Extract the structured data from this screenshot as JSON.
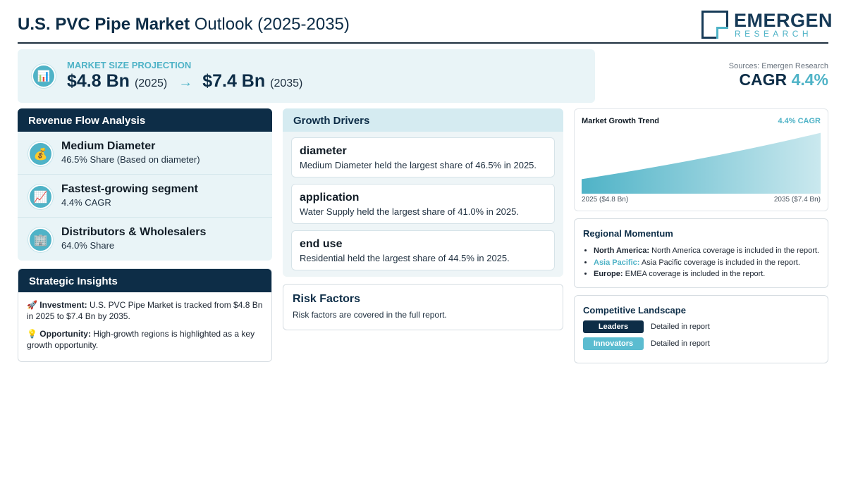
{
  "header": {
    "title_bold": "U.S. PVC Pipe Market",
    "title_rest": "Outlook (2025-2035)",
    "logo_main": "EMERGEN",
    "logo_sub": "RESEARCH"
  },
  "projection": {
    "icon": "bar-chart-icon",
    "label": "MARKET SIZE PROJECTION",
    "start_value": "$4.8 Bn",
    "start_year": "(2025)",
    "arrow": "→",
    "end_value": "$7.4 Bn",
    "end_year": "(2035)"
  },
  "summary": {
    "sources": "Sources: Emergen Research",
    "cagr_label": "CAGR",
    "cagr_value": "4.4%"
  },
  "revenue_flow": {
    "title": "Revenue Flow Analysis",
    "items": [
      {
        "icon": "money-bag-icon",
        "glyph": "💰",
        "title": "Medium Diameter",
        "subtitle": "46.5% Share (Based on diameter)"
      },
      {
        "icon": "trending-up-icon",
        "glyph": "📈",
        "title": "Fastest-growing segment",
        "subtitle": "4.4% CAGR"
      },
      {
        "icon": "building-icon",
        "glyph": "🏢",
        "title": "Distributors & Wholesalers",
        "subtitle": "64.0% Share"
      }
    ]
  },
  "strategic_insights": {
    "title": "Strategic Insights",
    "items": [
      {
        "icon": "rocket-icon",
        "glyph": "🚀",
        "label": "Investment:",
        "text": "U.S. PVC Pipe Market is tracked from $4.8 Bn in 2025 to $7.4 Bn by 2035."
      },
      {
        "icon": "lightbulb-icon",
        "glyph": "💡",
        "label": "Opportunity:",
        "text": "High-growth regions is highlighted as a key growth opportunity."
      }
    ]
  },
  "growth_drivers": {
    "title": "Growth Drivers",
    "items": [
      {
        "title": "diameter",
        "text": "Medium Diameter held the largest share of 46.5% in 2025."
      },
      {
        "title": "application",
        "text": "Water Supply held the largest share of 41.0% in 2025."
      },
      {
        "title": "end use",
        "text": "Residential held the largest share of 44.5% in 2025."
      }
    ]
  },
  "risk_factors": {
    "title": "Risk Factors",
    "text": "Risk factors are covered in the full report."
  },
  "chart_data": {
    "type": "area",
    "title": "Market Growth Trend",
    "annotation": "4.4% CAGR",
    "x": [
      2025,
      2035
    ],
    "start_label": "2025 ($4.8 Bn)",
    "end_label": "2035 ($7.4 Bn)",
    "values": [
      4.8,
      7.4
    ],
    "area_color": "#4fb3c7",
    "legend": "none",
    "grid": false
  },
  "regional_momentum": {
    "title": "Regional Momentum",
    "items": [
      {
        "region": "North America:",
        "text": "North America coverage is included in the report.",
        "accent": false
      },
      {
        "region": "Asia Pacific:",
        "text": "Asia Pacific coverage is included in the report.",
        "accent": true
      },
      {
        "region": "Europe:",
        "text": "EMEA coverage is included in the report.",
        "accent": false
      }
    ]
  },
  "competitive_landscape": {
    "title": "Competitive Landscape",
    "rows": [
      {
        "label": "Leaders",
        "text": "Detailed in report",
        "color": "#0d2d47"
      },
      {
        "label": "Innovators",
        "text": "Detailed in report",
        "color": "#5bbcd0"
      }
    ]
  }
}
